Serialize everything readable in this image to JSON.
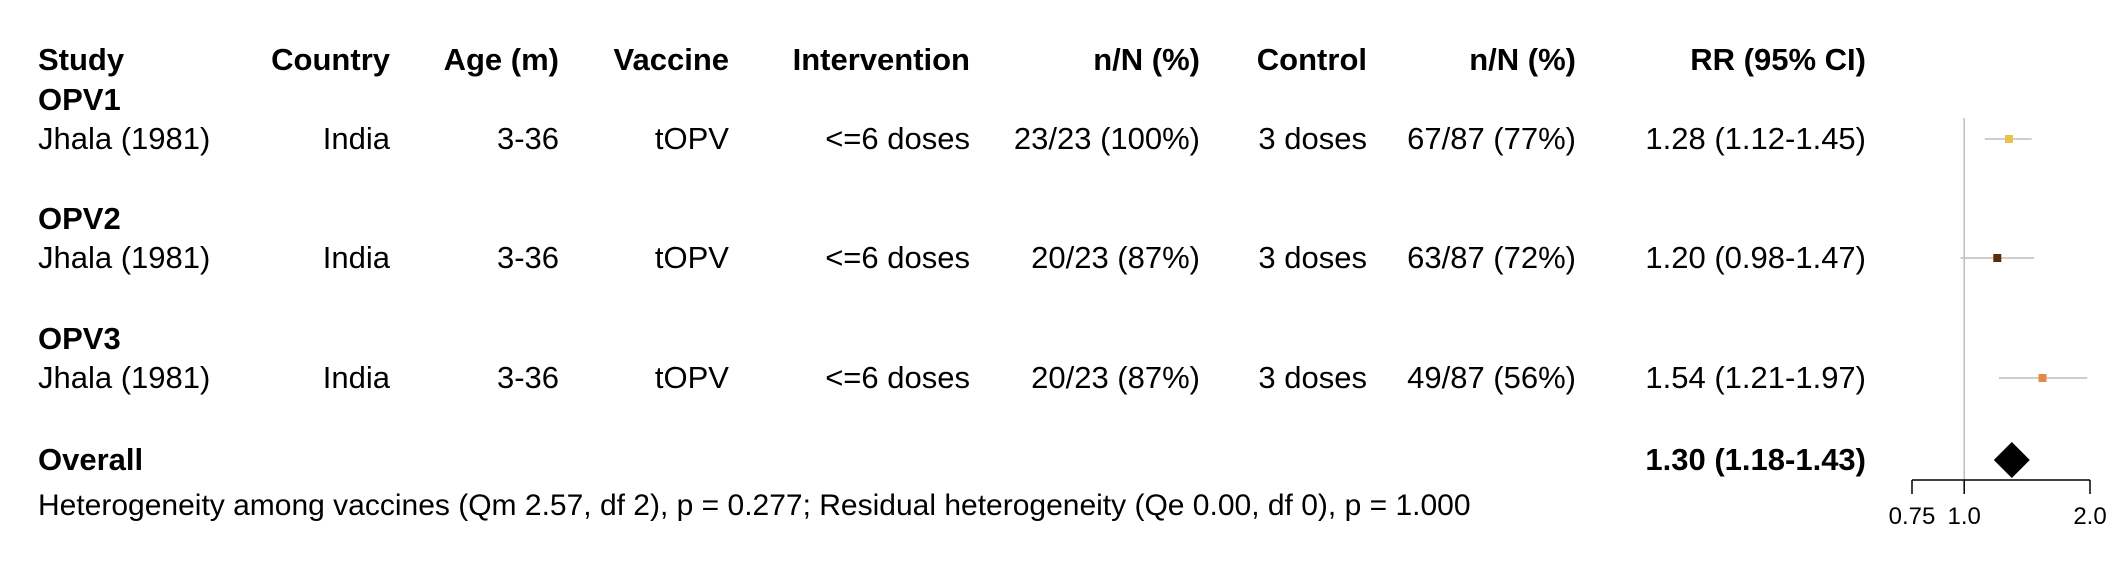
{
  "columns": [
    "Study",
    "Country",
    "Age (m)",
    "Vaccine",
    "Intervention",
    "n/N (%)",
    "Control",
    "n/N (%)",
    "RR (95% CI)"
  ],
  "groups": [
    {
      "label": "OPV1",
      "rows": [
        {
          "study": "Jhala (1981)",
          "country": "India",
          "age": "3-36",
          "vaccine": "tOPV",
          "intervention": "<=6 doses",
          "int_n": "23/23 (100%)",
          "control": "3 doses",
          "ctl_n": "67/87 (77%)",
          "rr_text": "1.28 (1.12-1.45)"
        }
      ]
    },
    {
      "label": "OPV2",
      "rows": [
        {
          "study": "Jhala (1981)",
          "country": "India",
          "age": "3-36",
          "vaccine": "tOPV",
          "intervention": "<=6 doses",
          "int_n": "20/23 (87%)",
          "control": "3 doses",
          "ctl_n": "63/87 (72%)",
          "rr_text": "1.20 (0.98-1.47)"
        }
      ]
    },
    {
      "label": "OPV3",
      "rows": [
        {
          "study": "Jhala (1981)",
          "country": "India",
          "age": "3-36",
          "vaccine": "tOPV",
          "intervention": "<=6 doses",
          "int_n": "20/23 (87%)",
          "control": "3 doses",
          "ctl_n": "49/87 (56%)",
          "rr_text": "1.54 (1.21-1.97)"
        }
      ]
    }
  ],
  "overall": {
    "label": "Overall",
    "rr_text": "1.30 (1.18-1.43)"
  },
  "heterogeneity": "Heterogeneity among vaccines (Qm 2.57, df 2), p = 0.277; Residual heterogeneity (Qe 0.00, df 0), p = 1.000",
  "chart_data": {
    "type": "scatter",
    "subtype": "forest",
    "x_scale": "log",
    "xlim": [
      0.75,
      2.0
    ],
    "ticks": [
      0.75,
      1.0,
      2.0
    ],
    "tick_labels": [
      "0.75",
      "1.0",
      "2.0"
    ],
    "reference_line": 1.0,
    "studies": [
      {
        "group": "OPV1",
        "rr": 1.28,
        "lo": 1.12,
        "hi": 1.45,
        "color": "#e8c24a"
      },
      {
        "group": "OPV2",
        "rr": 1.2,
        "lo": 0.98,
        "hi": 1.47,
        "color": "#5a2d0c"
      },
      {
        "group": "OPV3",
        "rr": 1.54,
        "lo": 1.21,
        "hi": 1.97,
        "color": "#e08a4a"
      }
    ],
    "overall": {
      "rr": 1.3,
      "lo": 1.18,
      "hi": 1.43
    }
  }
}
